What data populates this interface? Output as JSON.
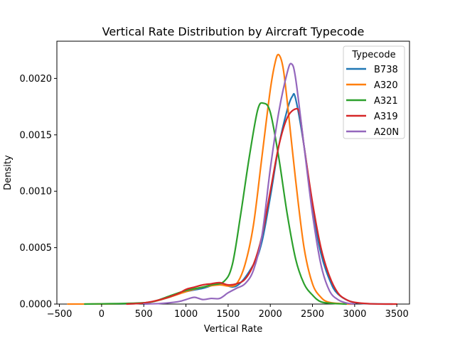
{
  "chart_data": {
    "type": "line",
    "title": "Vertical Rate Distribution by Aircraft Typecode",
    "xlabel": "Vertical Rate",
    "ylabel": "Density",
    "xlim": [
      -530,
      3650
    ],
    "ylim": [
      0,
      0.00233
    ],
    "x_ticks": [
      -500,
      0,
      500,
      1000,
      1500,
      2000,
      2500,
      3000,
      3500
    ],
    "x_tick_labels": [
      "−500",
      "0",
      "500",
      "1000",
      "1500",
      "2000",
      "2500",
      "3000",
      "3500"
    ],
    "y_ticks": [
      0,
      0.0005,
      0.001,
      0.0015,
      0.002
    ],
    "y_tick_labels": [
      "0.0000",
      "0.0005",
      "0.0010",
      "0.0015",
      "0.0020"
    ],
    "grid": false,
    "legend": {
      "title": "Typecode",
      "position": "top-right"
    },
    "series": [
      {
        "name": "B738",
        "color": "#1f77b4",
        "points": [
          [
            0,
            0
          ],
          [
            400,
            4e-06
          ],
          [
            600,
            2e-05
          ],
          [
            800,
            6e-05
          ],
          [
            1000,
            0.00011
          ],
          [
            1200,
            0.00014
          ],
          [
            1400,
            0.00018
          ],
          [
            1600,
            0.00016
          ],
          [
            1800,
            0.00035
          ],
          [
            1900,
            0.00055
          ],
          [
            2000,
            0.00095
          ],
          [
            2100,
            0.0014
          ],
          [
            2200,
            0.00172
          ],
          [
            2260,
            0.00184
          ],
          [
            2300,
            0.00182
          ],
          [
            2400,
            0.0014
          ],
          [
            2500,
            0.00085
          ],
          [
            2600,
            0.00045
          ],
          [
            2700,
            0.00022
          ],
          [
            2800,
            9e-05
          ],
          [
            3000,
            1.2e-05
          ],
          [
            3300,
            1e-06
          ],
          [
            3450,
            0
          ]
        ]
      },
      {
        "name": "A320",
        "color": "#ff7f0e",
        "points": [
          [
            -400,
            0
          ],
          [
            0,
            1e-06
          ],
          [
            400,
            6e-06
          ],
          [
            600,
            2e-05
          ],
          [
            800,
            6e-05
          ],
          [
            1000,
            0.00011
          ],
          [
            1200,
            0.00015
          ],
          [
            1400,
            0.00017
          ],
          [
            1500,
            0.00016
          ],
          [
            1600,
            0.00018
          ],
          [
            1700,
            0.00035
          ],
          [
            1800,
            0.0007
          ],
          [
            1900,
            0.0013
          ],
          [
            2000,
            0.0019
          ],
          [
            2060,
            0.00215
          ],
          [
            2100,
            0.00221
          ],
          [
            2150,
            0.0021
          ],
          [
            2200,
            0.0018
          ],
          [
            2300,
            0.0011
          ],
          [
            2400,
            0.0005
          ],
          [
            2500,
            0.00018
          ],
          [
            2600,
            6e-05
          ],
          [
            2700,
            1.5e-05
          ],
          [
            2900,
            1e-06
          ],
          [
            3000,
            0
          ]
        ]
      },
      {
        "name": "A321",
        "color": "#2ca02c",
        "points": [
          [
            -200,
            0
          ],
          [
            0,
            2e-06
          ],
          [
            400,
            8e-06
          ],
          [
            600,
            2e-05
          ],
          [
            800,
            7e-05
          ],
          [
            1000,
            0.00012
          ],
          [
            1200,
            0.00015
          ],
          [
            1300,
            0.00017
          ],
          [
            1450,
            0.0002
          ],
          [
            1550,
            0.00035
          ],
          [
            1650,
            0.0008
          ],
          [
            1750,
            0.0013
          ],
          [
            1850,
            0.00172
          ],
          [
            1920,
            0.00178
          ],
          [
            2000,
            0.0017
          ],
          [
            2100,
            0.0013
          ],
          [
            2200,
            0.0008
          ],
          [
            2300,
            0.0004
          ],
          [
            2400,
            0.00018
          ],
          [
            2500,
            8e-05
          ],
          [
            2600,
            2e-05
          ],
          [
            2750,
            5e-06
          ],
          [
            2900,
            0
          ]
        ]
      },
      {
        "name": "A319",
        "color": "#d62728",
        "points": [
          [
            300,
            0
          ],
          [
            500,
            1e-05
          ],
          [
            700,
            4e-05
          ],
          [
            900,
            9e-05
          ],
          [
            1000,
            0.00013
          ],
          [
            1100,
            0.00015
          ],
          [
            1200,
            0.00017
          ],
          [
            1300,
            0.00018
          ],
          [
            1400,
            0.00019
          ],
          [
            1500,
            0.00017
          ],
          [
            1600,
            0.00018
          ],
          [
            1700,
            0.00022
          ],
          [
            1800,
            0.00035
          ],
          [
            1900,
            0.0006
          ],
          [
            2000,
            0.001
          ],
          [
            2100,
            0.0014
          ],
          [
            2200,
            0.00165
          ],
          [
            2300,
            0.00173
          ],
          [
            2350,
            0.00168
          ],
          [
            2400,
            0.0014
          ],
          [
            2500,
            0.0009
          ],
          [
            2600,
            0.0005
          ],
          [
            2700,
            0.00025
          ],
          [
            2800,
            0.0001
          ],
          [
            2900,
            4e-05
          ],
          [
            3000,
            1.5e-05
          ],
          [
            3200,
            2e-06
          ],
          [
            3500,
            0
          ]
        ]
      },
      {
        "name": "A20N",
        "color": "#9467bd",
        "points": [
          [
            500,
            0
          ],
          [
            700,
            5e-06
          ],
          [
            900,
            2e-05
          ],
          [
            1000,
            4e-05
          ],
          [
            1100,
            6e-05
          ],
          [
            1200,
            4e-05
          ],
          [
            1300,
            5e-05
          ],
          [
            1400,
            5e-05
          ],
          [
            1500,
            0.0001
          ],
          [
            1600,
            0.00014
          ],
          [
            1700,
            0.00018
          ],
          [
            1800,
            0.0003
          ],
          [
            1900,
            0.0006
          ],
          [
            2000,
            0.0012
          ],
          [
            2100,
            0.0017
          ],
          [
            2200,
            0.00205
          ],
          [
            2250,
            0.00213
          ],
          [
            2300,
            0.002
          ],
          [
            2400,
            0.0014
          ],
          [
            2500,
            0.0008
          ],
          [
            2600,
            0.00035
          ],
          [
            2700,
            0.00012
          ],
          [
            2800,
            4e-05
          ],
          [
            2900,
            1e-05
          ],
          [
            3000,
            0
          ]
        ]
      }
    ]
  }
}
